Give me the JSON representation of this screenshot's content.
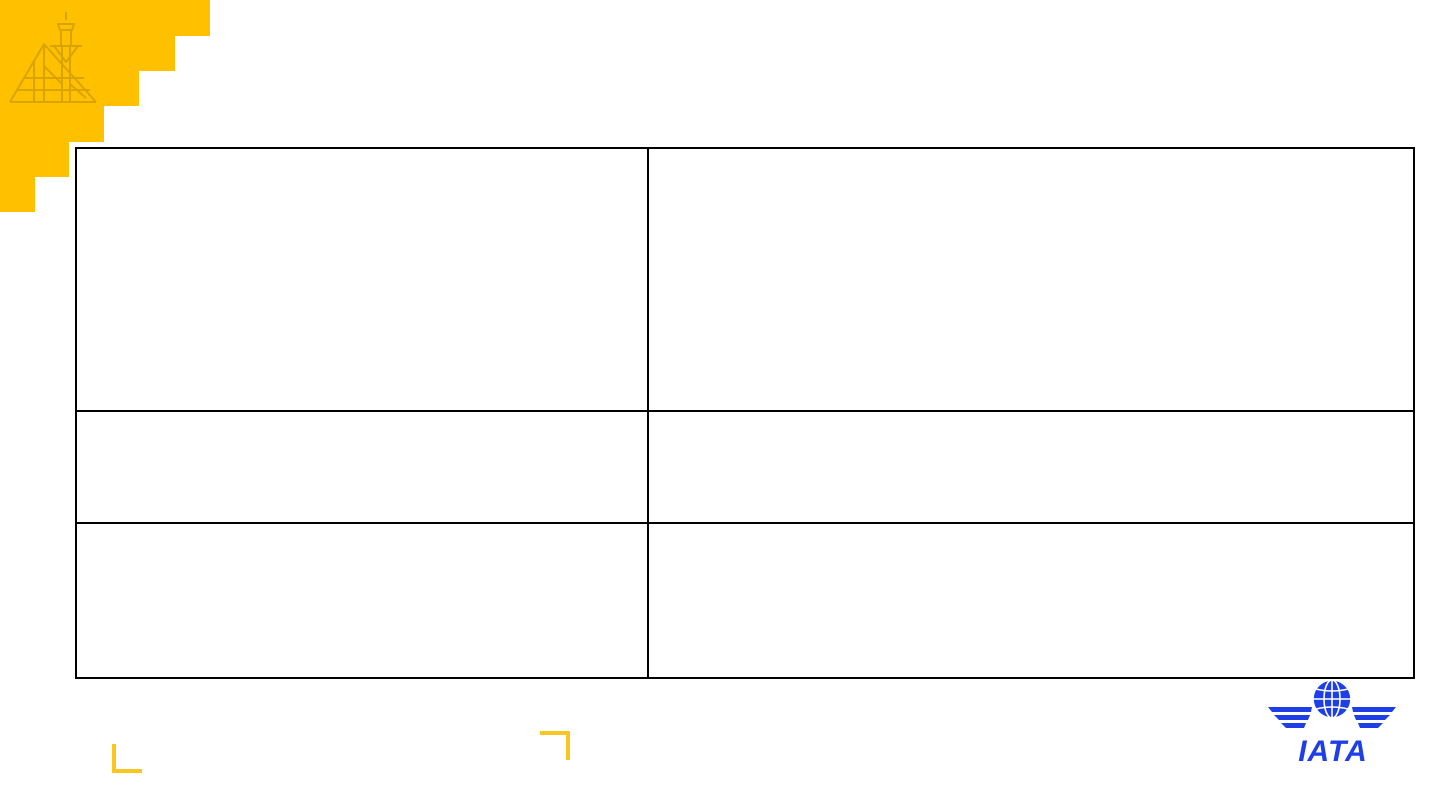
{
  "colors": {
    "accent_yellow": "#FFC000",
    "bracket_yellow": "#F9C623",
    "tower_line": "#D9A400",
    "iata_blue": "#1E3EE6",
    "table_border": "#000000"
  },
  "icons": {
    "corner": "control-tower-icon",
    "logo": "iata-logo"
  },
  "table": {
    "rows": [
      {
        "left": "",
        "right": ""
      },
      {
        "left": "",
        "right": ""
      },
      {
        "left": "",
        "right": ""
      }
    ]
  },
  "logo": {
    "text": "IATA"
  }
}
